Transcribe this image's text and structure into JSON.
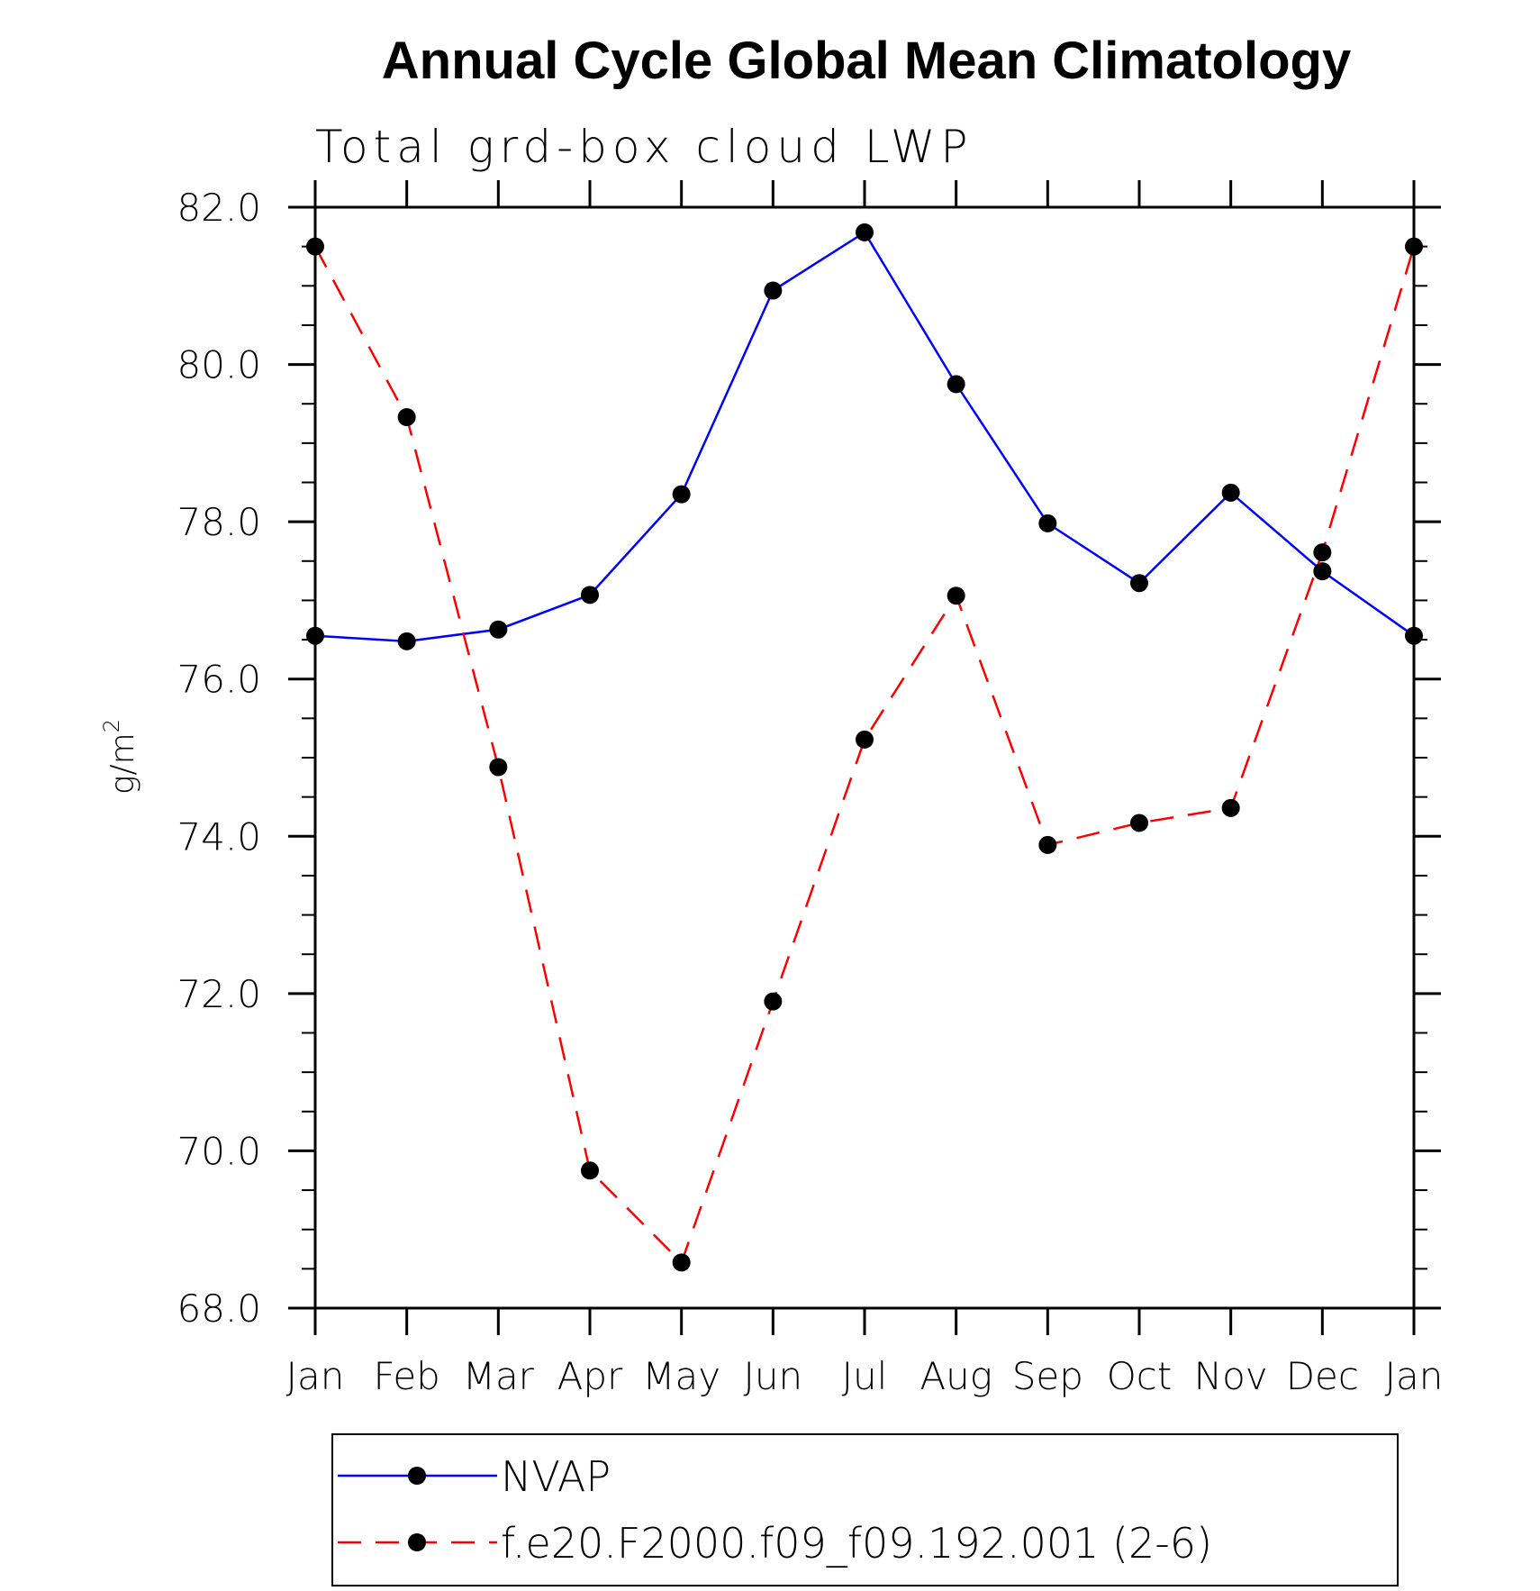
{
  "chart_data": {
    "type": "line",
    "title": "Annual Cycle Global Mean Climatology",
    "subtitle": "Total grd-box cloud LWP",
    "xlabel": "",
    "ylabel": "g/m",
    "ylabel_superscript": "2",
    "ylim": [
      68.0,
      82.0
    ],
    "ytick_values": [
      68.0,
      70.0,
      72.0,
      74.0,
      76.0,
      78.0,
      80.0,
      82.0
    ],
    "ytick_labels": [
      "68.0",
      "70.0",
      "72.0",
      "74.0",
      "76.0",
      "78.0",
      "80.0",
      "82.0"
    ],
    "yminor_step": 0.5,
    "categories": [
      "Jan",
      "Feb",
      "Mar",
      "Apr",
      "May",
      "Jun",
      "Jul",
      "Aug",
      "Sep",
      "Oct",
      "Nov",
      "Dec",
      "Jan"
    ],
    "grid": false,
    "legend_position": "bottom",
    "series": [
      {
        "name": "NVAP",
        "color": "#0000ff",
        "line_style": "solid",
        "marker": "filled-circle",
        "marker_color": "#000000",
        "values": [
          76.55,
          76.48,
          76.63,
          77.07,
          78.35,
          80.94,
          81.68,
          79.75,
          77.98,
          77.22,
          78.37,
          77.37,
          76.55
        ]
      },
      {
        "name": "f.e20.F2000.f09_f09.192.001 (2-6)",
        "color": "#ff0000",
        "line_style": "dashed",
        "marker": "filled-circle",
        "marker_color": "#000000",
        "values": [
          81.5,
          79.33,
          74.88,
          69.75,
          68.58,
          71.9,
          75.23,
          77.06,
          73.89,
          74.17,
          74.36,
          77.61,
          81.5
        ]
      }
    ]
  }
}
